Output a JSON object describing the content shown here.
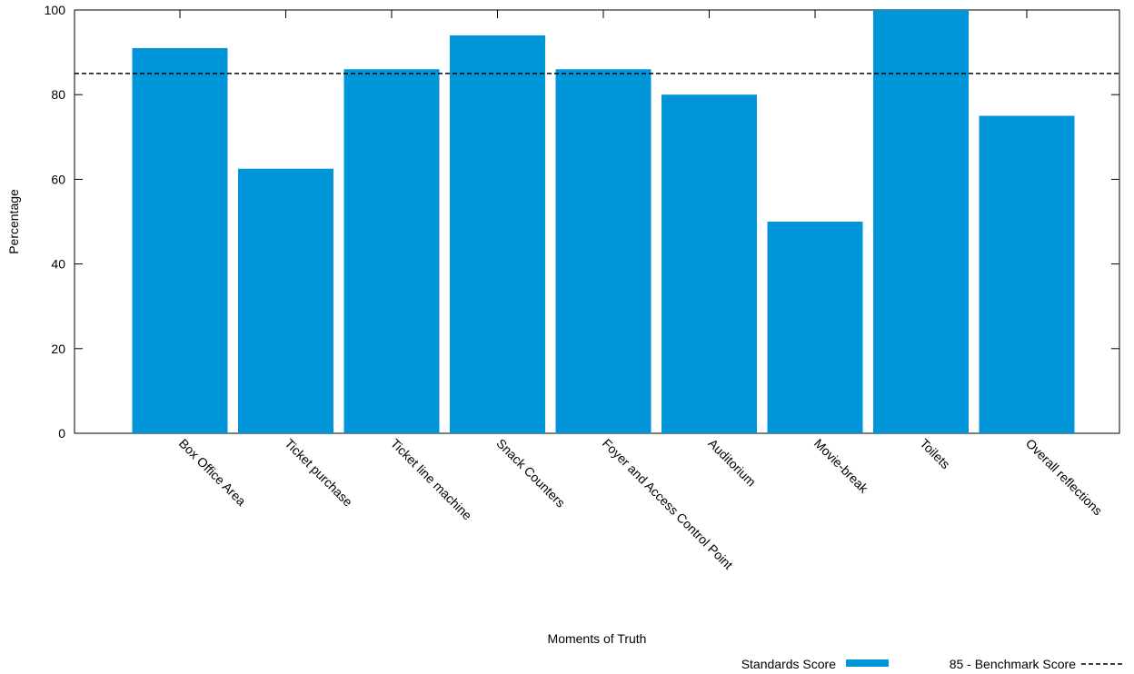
{
  "chart_data": {
    "type": "bar",
    "title": "",
    "xlabel": "Moments of Truth",
    "ylabel": "Percentage",
    "ylim": [
      0,
      100
    ],
    "yticks": [
      0,
      20,
      40,
      60,
      80,
      100
    ],
    "grid": false,
    "legend_position": "bottom-right",
    "categories": [
      "Box Office Area",
      "Ticket purchase",
      "Ticket line machine",
      "Snack Counters",
      "Foyer and Access Control Point",
      "Auditorium",
      "Movie-break",
      "Toilets",
      "Overall reflections"
    ],
    "series": [
      {
        "name": "Standards Score",
        "color": "#0095d9",
        "values": [
          91,
          62.5,
          86,
          94,
          86,
          80,
          50,
          100,
          75
        ]
      }
    ],
    "reference_lines": [
      {
        "name": "85 - Benchmark Score",
        "value": 85,
        "style": "dashed",
        "color": "#000000"
      }
    ]
  }
}
